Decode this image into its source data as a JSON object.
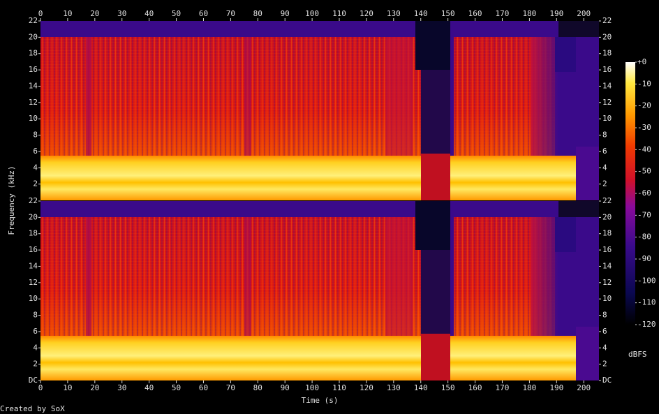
{
  "chart_data": {
    "type": "spectrogram",
    "x_label": "Time (s)",
    "y_label": "Frequency (kHz)",
    "xlim": [
      0,
      205.6
    ],
    "xticks": [
      0,
      10,
      20,
      30,
      40,
      50,
      60,
      70,
      80,
      90,
      100,
      110,
      120,
      130,
      140,
      150,
      160,
      170,
      180,
      190,
      200
    ],
    "channels": [
      {
        "ylim": [
          0,
          22
        ],
        "yticks": [
          2,
          4,
          6,
          8,
          10,
          12,
          14,
          16,
          18,
          20,
          22
        ]
      },
      {
        "ylim": [
          0,
          22
        ],
        "yticks": [
          {
            "value": 0,
            "label": "DC"
          },
          2,
          4,
          6,
          8,
          10,
          12,
          14,
          16,
          18,
          20,
          22
        ]
      }
    ],
    "colorbar": {
      "label": "dBFS",
      "lim": [
        -120,
        0
      ],
      "ticks": [
        {
          "value": 0,
          "label": "+0"
        },
        -10,
        -20,
        -30,
        -40,
        -50,
        -60,
        -70,
        -80,
        -90,
        -100,
        -110,
        -120
      ]
    },
    "footer": "Created by SoX"
  }
}
